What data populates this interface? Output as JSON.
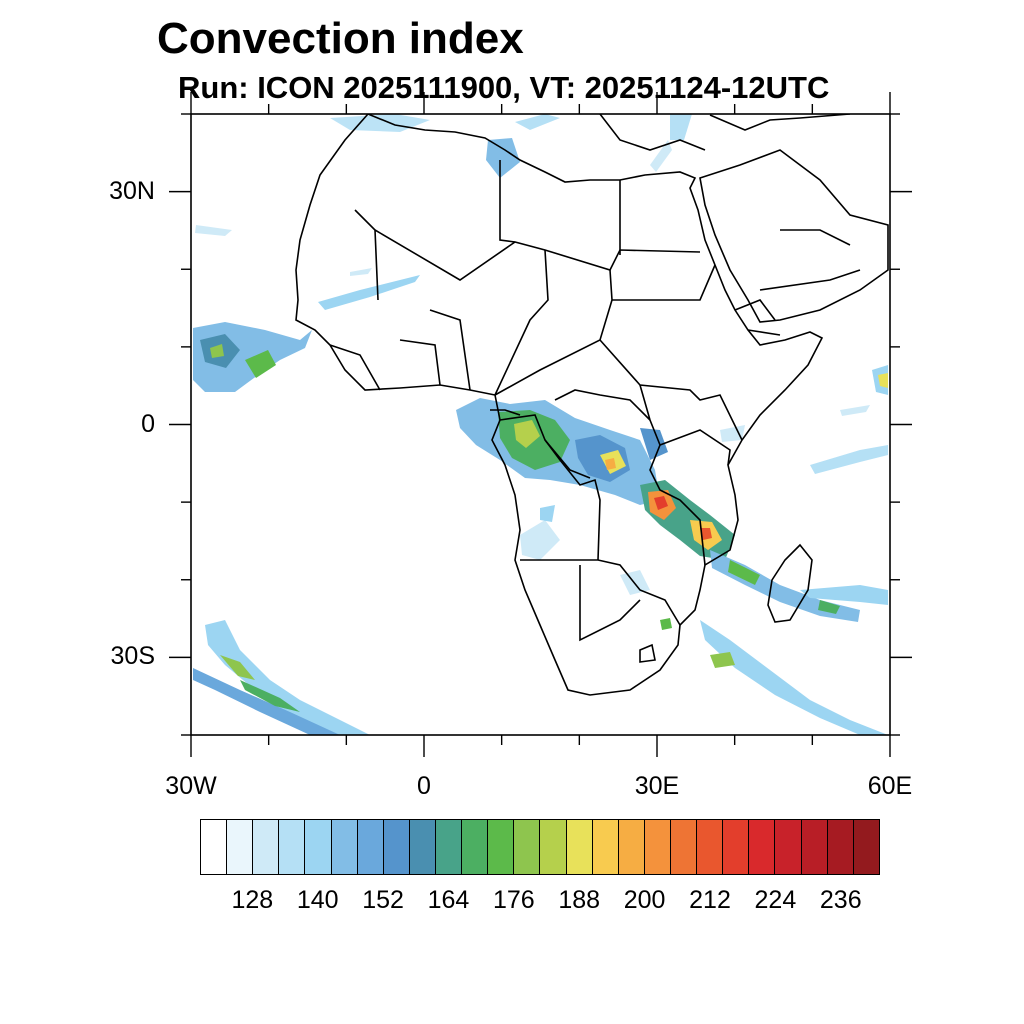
{
  "title": "Convection index",
  "subtitle": "Run: ICON 2025111900,  VT: 20251124-12UTC",
  "axes": {
    "lat_ticks": [
      {
        "label": "30N",
        "lat": 30
      },
      {
        "label": "0",
        "lat": 0
      },
      {
        "label": "30S",
        "lat": -30
      }
    ],
    "lon_ticks": [
      {
        "label": "30W",
        "lon": -30
      },
      {
        "label": "0",
        "lon": 0
      },
      {
        "label": "30E",
        "lon": 30
      },
      {
        "label": "60E",
        "lon": 60
      }
    ],
    "lon_range": [
      -30,
      60
    ],
    "lat_range": [
      -40,
      40
    ]
  },
  "colorbar": {
    "labels": [
      "128",
      "140",
      "152",
      "164",
      "176",
      "188",
      "200",
      "212",
      "224",
      "236"
    ],
    "colors": [
      "#ffffff",
      "#eaf6fc",
      "#cfeaf7",
      "#b5e0f5",
      "#9cd5f2",
      "#82bde6",
      "#6aa8dc",
      "#5594cc",
      "#4a8fb0",
      "#48a389",
      "#4caf62",
      "#5cba4a",
      "#8ec54e",
      "#b5d04c",
      "#e8e15a",
      "#f8cb4f",
      "#f6ad43",
      "#f4923c",
      "#ee7434",
      "#e9572e",
      "#e33e2c",
      "#d9292c",
      "#c8222a",
      "#b81e26",
      "#a61b22",
      "#931a1e"
    ]
  }
}
